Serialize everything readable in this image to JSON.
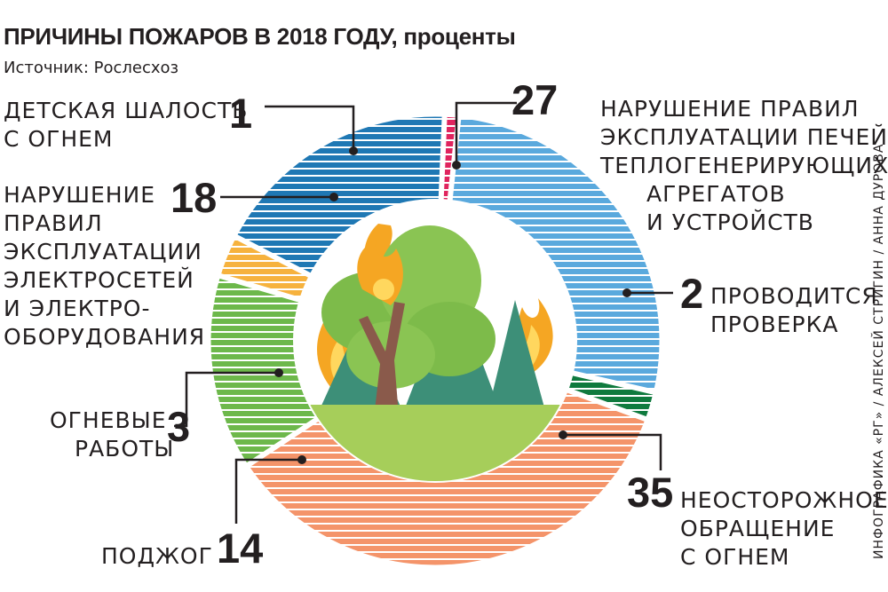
{
  "title": "ПРИЧИНЫ ПОЖАРОВ В 2018 ГОДУ, проценты",
  "source": "Источник: Рослесхоз",
  "credit": "ИНФОГРАФИКА «РГ» / АЛЕКСЕЙ СТРИГИН / АННА ДУРОВА",
  "colors": {
    "background": "#ffffff",
    "text": "#231f20",
    "leader": "#231f20"
  },
  "chart_data": {
    "type": "pie",
    "style": "donut",
    "unit": "%",
    "title": "ПРИЧИНЫ ПОЖАРОВ В 2018 ГОДУ, проценты",
    "source": "Источник: Рослесхоз",
    "series": [
      {
        "label": "НАРУШЕНИЕ ПРАВИЛ ЭКСПЛУАТАЦИИ ПЕЧЕЙ, ТЕПЛОГЕНЕРИРУЮЩИХ АГРЕГАТОВ И УСТРОЙСТВ",
        "value": 27,
        "color": "#5aa9dd"
      },
      {
        "label": "ПРОВОДИТСЯ ПРОВЕРКА",
        "value": 2,
        "color": "#0f7a3e"
      },
      {
        "label": "НЕОСТОРОЖНОЕ ОБРАЩЕНИЕ С ОГНЕМ",
        "value": 35,
        "color": "#f4946a"
      },
      {
        "label": "ПОДЖОГ",
        "value": 14,
        "color": "#6db84b"
      },
      {
        "label": "ОГНЕВЫЕ РАБОТЫ",
        "value": 3,
        "color": "#f6b23e"
      },
      {
        "label": "НАРУШЕНИЕ ПРАВИЛ ЭКСПЛУАТАЦИИ ЭЛЕКТРОСЕТЕЙ И ЭЛЕКТРО- ОБОРУДОВАНИЯ",
        "value": 18,
        "color": "#1f78b4"
      },
      {
        "label": "ДЕТСКАЯ ШАЛОСТЬ С ОГНЕМ",
        "value": 1,
        "color": "#e0245e"
      }
    ]
  },
  "labels": {
    "stoves": {
      "value": "27",
      "lines": [
        "НАРУШЕНИЕ ПРАВИЛ",
        "ЭКСПЛУАТАЦИИ ПЕЧЕЙ,",
        "ТЕПЛОГЕНЕРИРУЮЩИХ",
        "АГРЕГАТОВ",
        "И УСТРОЙСТВ"
      ]
    },
    "check": {
      "value": "2",
      "lines": [
        "ПРОВОДИТСЯ",
        "ПРОВЕРКА"
      ]
    },
    "careless": {
      "value": "35",
      "lines": [
        "НЕОСТОРОЖНОЕ",
        "ОБРАЩЕНИЕ",
        "С ОГНЕМ"
      ]
    },
    "arson": {
      "value": "14",
      "lines": [
        "ПОДЖОГ"
      ]
    },
    "fire_works": {
      "value": "3",
      "lines": [
        "ОГНЕВЫЕ",
        "РАБОТЫ"
      ]
    },
    "electric": {
      "value": "18",
      "lines": [
        "НАРУШЕНИЕ",
        "ПРАВИЛ",
        "ЭКСПЛУАТАЦИИ",
        "ЭЛЕКТРОСЕТЕЙ",
        "И ЭЛЕКТРО-",
        "ОБОРУДОВАНИЯ"
      ]
    },
    "children": {
      "value": "1",
      "lines": [
        "ДЕТСКАЯ ШАЛОСТЬ",
        "С ОГНЕМ"
      ]
    }
  },
  "center_illustration": {
    "icon": "forest-fire-icon",
    "sky": "#ffffff",
    "ground": "#a6ce5a",
    "tree": "#7dbb4a",
    "spruce": "#3d8f78",
    "trunk": "#8a5a4b",
    "flame": "#f5a623",
    "flame_core": "#ffd75e"
  }
}
